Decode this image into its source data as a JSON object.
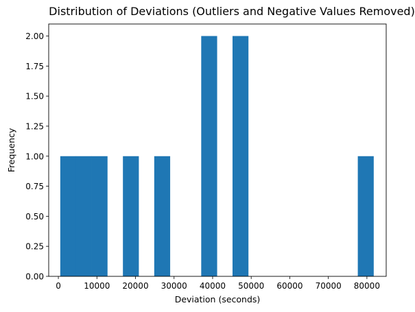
{
  "chart_data": {
    "type": "bar",
    "title": "Distribution of Deviations (Outliers and Negative Values Removed)",
    "xlabel": "Deviation (seconds)",
    "ylabel": "Frequency",
    "xlim": [
      -2500,
      85000
    ],
    "ylim": [
      0,
      2.1
    ],
    "xticks": [
      0,
      10000,
      20000,
      30000,
      40000,
      50000,
      60000,
      70000,
      80000
    ],
    "xtick_labels": [
      "0",
      "10000",
      "20000",
      "30000",
      "40000",
      "50000",
      "60000",
      "70000",
      "80000"
    ],
    "yticks": [
      0,
      0.25,
      0.5,
      0.75,
      1.0,
      1.25,
      1.5,
      1.75,
      2.0
    ],
    "ytick_labels": [
      "0.00",
      "0.25",
      "0.50",
      "0.75",
      "1.00",
      "1.25",
      "1.50",
      "1.75",
      "2.00"
    ],
    "bars": [
      {
        "x0": 500,
        "x1": 4560,
        "count": 1
      },
      {
        "x0": 4560,
        "x1": 8620,
        "count": 1
      },
      {
        "x0": 8620,
        "x1": 12680,
        "count": 1
      },
      {
        "x0": 16740,
        "x1": 20800,
        "count": 1
      },
      {
        "x0": 24860,
        "x1": 28920,
        "count": 1
      },
      {
        "x0": 37040,
        "x1": 41100,
        "count": 2
      },
      {
        "x0": 45160,
        "x1": 49220,
        "count": 2
      },
      {
        "x0": 77640,
        "x1": 81700,
        "count": 1
      }
    ],
    "bar_color": "#1f77b4",
    "grid": false,
    "legend": "none"
  }
}
